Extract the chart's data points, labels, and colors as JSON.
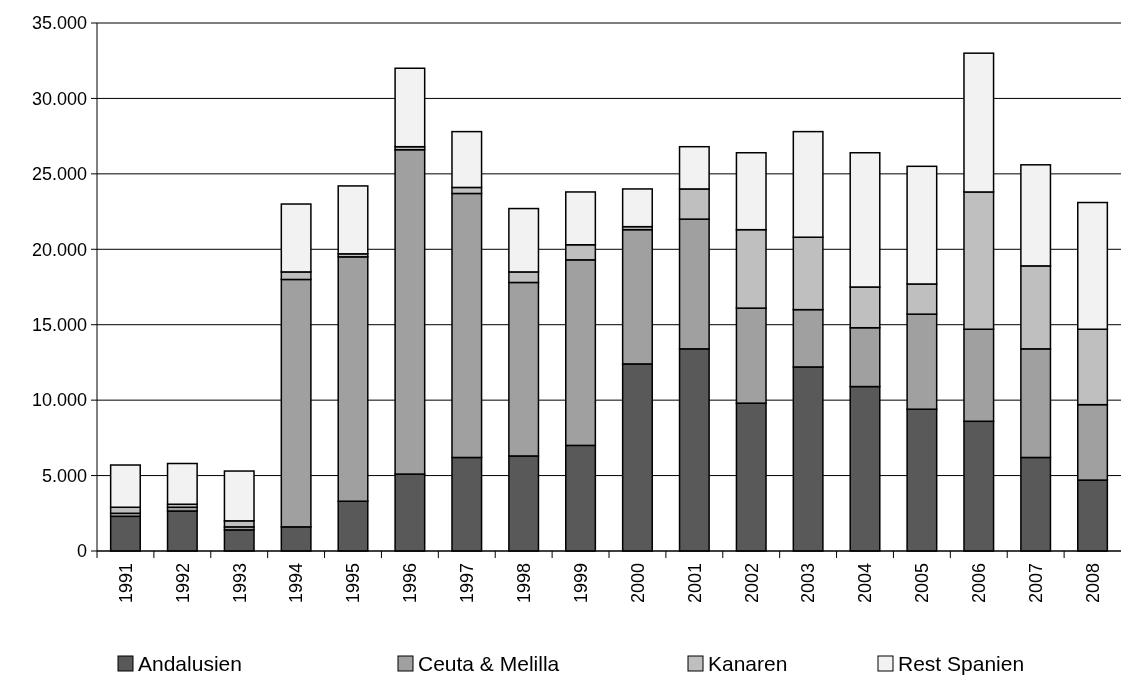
{
  "chart_data": {
    "type": "bar",
    "stacked": true,
    "categories": [
      "1991",
      "1992",
      "1993",
      "1994",
      "1995",
      "1996",
      "1997",
      "1998",
      "1999",
      "2000",
      "2001",
      "2002",
      "2003",
      "2004",
      "2005",
      "2006",
      "2007",
      "2008"
    ],
    "series": [
      {
        "name": "Andalusien",
        "color": "#595959",
        "values": [
          2300,
          2650,
          1400,
          1600,
          3300,
          5100,
          6200,
          6300,
          7000,
          12400,
          13400,
          9800,
          12200,
          10900,
          9400,
          8600,
          6200,
          4700
        ]
      },
      {
        "name": "Ceuta & Melilla",
        "color": "#a0a0a0",
        "values": [
          200,
          250,
          200,
          16400,
          16200,
          21500,
          17500,
          11500,
          12300,
          8900,
          8600,
          6300,
          3800,
          3900,
          6300,
          6100,
          7200,
          5000
        ]
      },
      {
        "name": "Kanaren",
        "color": "#bfbfbf",
        "values": [
          400,
          200,
          400,
          500,
          200,
          200,
          400,
          700,
          1000,
          200,
          2000,
          5200,
          4800,
          2700,
          2000,
          9100,
          5500,
          5000
        ]
      },
      {
        "name": "Rest Spanien",
        "color": "#f2f2f2",
        "values": [
          2800,
          2700,
          3300,
          4500,
          4500,
          5200,
          3700,
          4200,
          3500,
          2500,
          2800,
          5100,
          7000,
          8900,
          7800,
          9200,
          6700,
          8400
        ]
      }
    ],
    "ylim": [
      0,
      35000
    ],
    "yticks": [
      {
        "value": 0,
        "label": "0"
      },
      {
        "value": 5000,
        "label": "5.000"
      },
      {
        "value": 10000,
        "label": "10.000"
      },
      {
        "value": 15000,
        "label": "15.000"
      },
      {
        "value": 20000,
        "label": "20.000"
      },
      {
        "value": 25000,
        "label": "25.000"
      },
      {
        "value": 30000,
        "label": "30.000"
      },
      {
        "value": 35000,
        "label": "35.000"
      }
    ],
    "grid": "y",
    "legend": "bottom"
  }
}
